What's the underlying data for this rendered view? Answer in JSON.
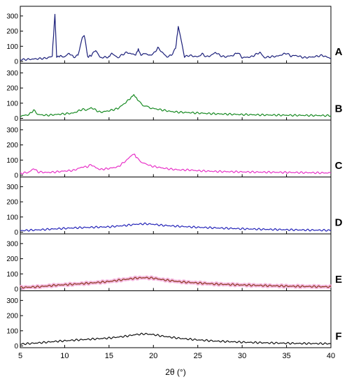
{
  "chart_data": {
    "type": "line",
    "xlabel": "2θ (°)",
    "xlim": [
      5,
      40
    ],
    "x_ticks": [
      5,
      10,
      15,
      20,
      25,
      30,
      35,
      40
    ],
    "x_tick_labels": [
      "5",
      "10",
      "15",
      "20",
      "25",
      "30",
      "35",
      "40"
    ],
    "ylim": [
      0,
      350
    ],
    "y_ticks": [
      0,
      100,
      200,
      300
    ],
    "y_tick_labels": [
      "0",
      "100",
      "200",
      "300"
    ],
    "grid": false,
    "legend": "none",
    "series": [
      {
        "name": "A",
        "color": "#1b1f7a",
        "x": [
          5,
          6,
          7,
          8,
          8.6,
          8.9,
          9.1,
          9.5,
          10,
          10.5,
          11,
          11.5,
          12,
          12.2,
          12.4,
          12.6,
          13,
          13.5,
          14,
          15,
          15.3,
          16,
          16.5,
          17,
          17.5,
          18,
          18.3,
          18.6,
          19,
          19.5,
          20,
          20.5,
          21,
          21.5,
          22,
          22.5,
          22.8,
          23.5,
          24,
          25,
          25.5,
          26,
          26.5,
          27,
          27.5,
          28,
          29,
          29.5,
          30,
          31,
          32,
          32.5,
          33,
          34,
          35,
          35.5,
          36,
          37,
          38,
          39,
          40
        ],
        "y": [
          12,
          14,
          18,
          22,
          40,
          310,
          30,
          35,
          30,
          55,
          28,
          40,
          160,
          170,
          110,
          30,
          40,
          75,
          25,
          30,
          55,
          25,
          45,
          60,
          50,
          45,
          80,
          40,
          55,
          40,
          50,
          90,
          60,
          30,
          40,
          85,
          230,
          30,
          40,
          30,
          50,
          30,
          40,
          60,
          40,
          30,
          40,
          60,
          25,
          30,
          60,
          25,
          30,
          35,
          55,
          35,
          40,
          25,
          30,
          40,
          20
        ]
      },
      {
        "name": "B",
        "color": "#178a22",
        "x": [
          5,
          6,
          6.5,
          7,
          8,
          9,
          10,
          11,
          12,
          12.5,
          13,
          13.5,
          14,
          15,
          16,
          17,
          17.5,
          17.8,
          18.2,
          18.8,
          19.5,
          20,
          21,
          22,
          23,
          24,
          25,
          27,
          30,
          33,
          36,
          40
        ],
        "y": [
          15,
          25,
          55,
          25,
          20,
          25,
          30,
          35,
          60,
          55,
          70,
          55,
          40,
          50,
          65,
          110,
          140,
          155,
          125,
          90,
          70,
          65,
          55,
          45,
          40,
          38,
          35,
          30,
          25,
          22,
          20,
          18
        ]
      },
      {
        "name": "C",
        "color": "#e833c8",
        "x": [
          5,
          6,
          6.5,
          7,
          8,
          9,
          10,
          11,
          12,
          12.5,
          13,
          13.5,
          14,
          15,
          16,
          17,
          17.5,
          17.8,
          18.2,
          18.8,
          19.5,
          20,
          21,
          22,
          23,
          24,
          25,
          27,
          30,
          33,
          36,
          40
        ],
        "y": [
          12,
          20,
          45,
          22,
          18,
          22,
          28,
          32,
          55,
          55,
          70,
          50,
          38,
          45,
          55,
          100,
          130,
          140,
          110,
          80,
          65,
          58,
          48,
          40,
          35,
          35,
          30,
          25,
          22,
          20,
          18,
          15
        ]
      },
      {
        "name": "D",
        "color": "#2323b8",
        "x": [
          5,
          7,
          9,
          11,
          13,
          15,
          17,
          18,
          19,
          20,
          21,
          23,
          25,
          27,
          30,
          33,
          36,
          40
        ],
        "y": [
          10,
          15,
          22,
          28,
          32,
          35,
          45,
          52,
          55,
          52,
          45,
          38,
          32,
          28,
          22,
          18,
          15,
          12
        ]
      },
      {
        "name": "E",
        "color": "#8b3a1e",
        "x": [
          5,
          7,
          9,
          11,
          13,
          15,
          17,
          18,
          19,
          20,
          21,
          23,
          25,
          27,
          30,
          33,
          36,
          40
        ],
        "y": [
          10,
          15,
          25,
          32,
          40,
          50,
          65,
          72,
          75,
          72,
          62,
          48,
          40,
          33,
          27,
          22,
          18,
          15
        ]
      },
      {
        "name": "F",
        "color": "#111111",
        "x": [
          5,
          7,
          9,
          11,
          13,
          15,
          17,
          18,
          19,
          20,
          21,
          23,
          25,
          27,
          30,
          33,
          36,
          40
        ],
        "y": [
          12,
          20,
          30,
          38,
          45,
          52,
          65,
          75,
          80,
          75,
          65,
          50,
          40,
          32,
          25,
          20,
          17,
          15
        ]
      }
    ]
  }
}
